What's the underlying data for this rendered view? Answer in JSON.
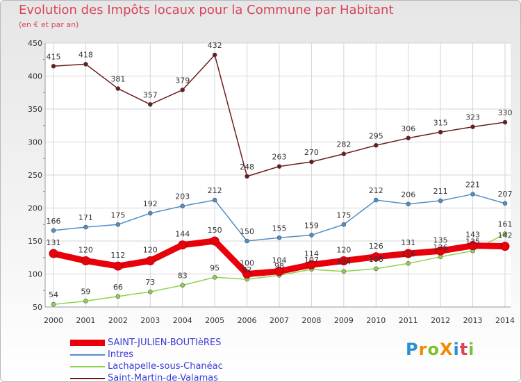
{
  "title": "Evolution des Impôts locaux pour la Commune par Habitant",
  "subtitle": "(en € et par an)",
  "logo": "ProXiti",
  "chart_data": {
    "type": "line",
    "x": [
      "2000",
      "2001",
      "2002",
      "2003",
      "2004",
      "2005",
      "2006",
      "2007",
      "2008",
      "2009",
      "2010",
      "2011",
      "2012",
      "2013",
      "2014"
    ],
    "ylim": [
      50,
      450
    ],
    "yticks": [
      50,
      100,
      150,
      200,
      250,
      300,
      350,
      400,
      450
    ],
    "grid": true,
    "legend_position": "bottom-left",
    "series": [
      {
        "name": "SAINT-JULIEN-BOUTIèRES",
        "color": "#e8000b",
        "values": [
          131,
          120,
          112,
          120,
          144,
          150,
          100,
          104,
          114,
          120,
          126,
          131,
          135,
          143,
          142
        ]
      },
      {
        "name": "Intres",
        "color": "#4f8fc8",
        "values": [
          166,
          171,
          175,
          192,
          203,
          212,
          150,
          155,
          159,
          175,
          212,
          206,
          211,
          221,
          207
        ]
      },
      {
        "name": "Lachapelle-sous-Chanéac",
        "color": "#8fd14f",
        "values": [
          54,
          59,
          66,
          73,
          83,
          95,
          92,
          98,
          107,
          104,
          108,
          116,
          126,
          135,
          161
        ]
      },
      {
        "name": "Saint-Martin-de-Valamas",
        "color": "#6b1b1b",
        "values": [
          415,
          418,
          381,
          357,
          379,
          432,
          248,
          263,
          270,
          282,
          295,
          306,
          315,
          323,
          330
        ]
      }
    ]
  }
}
